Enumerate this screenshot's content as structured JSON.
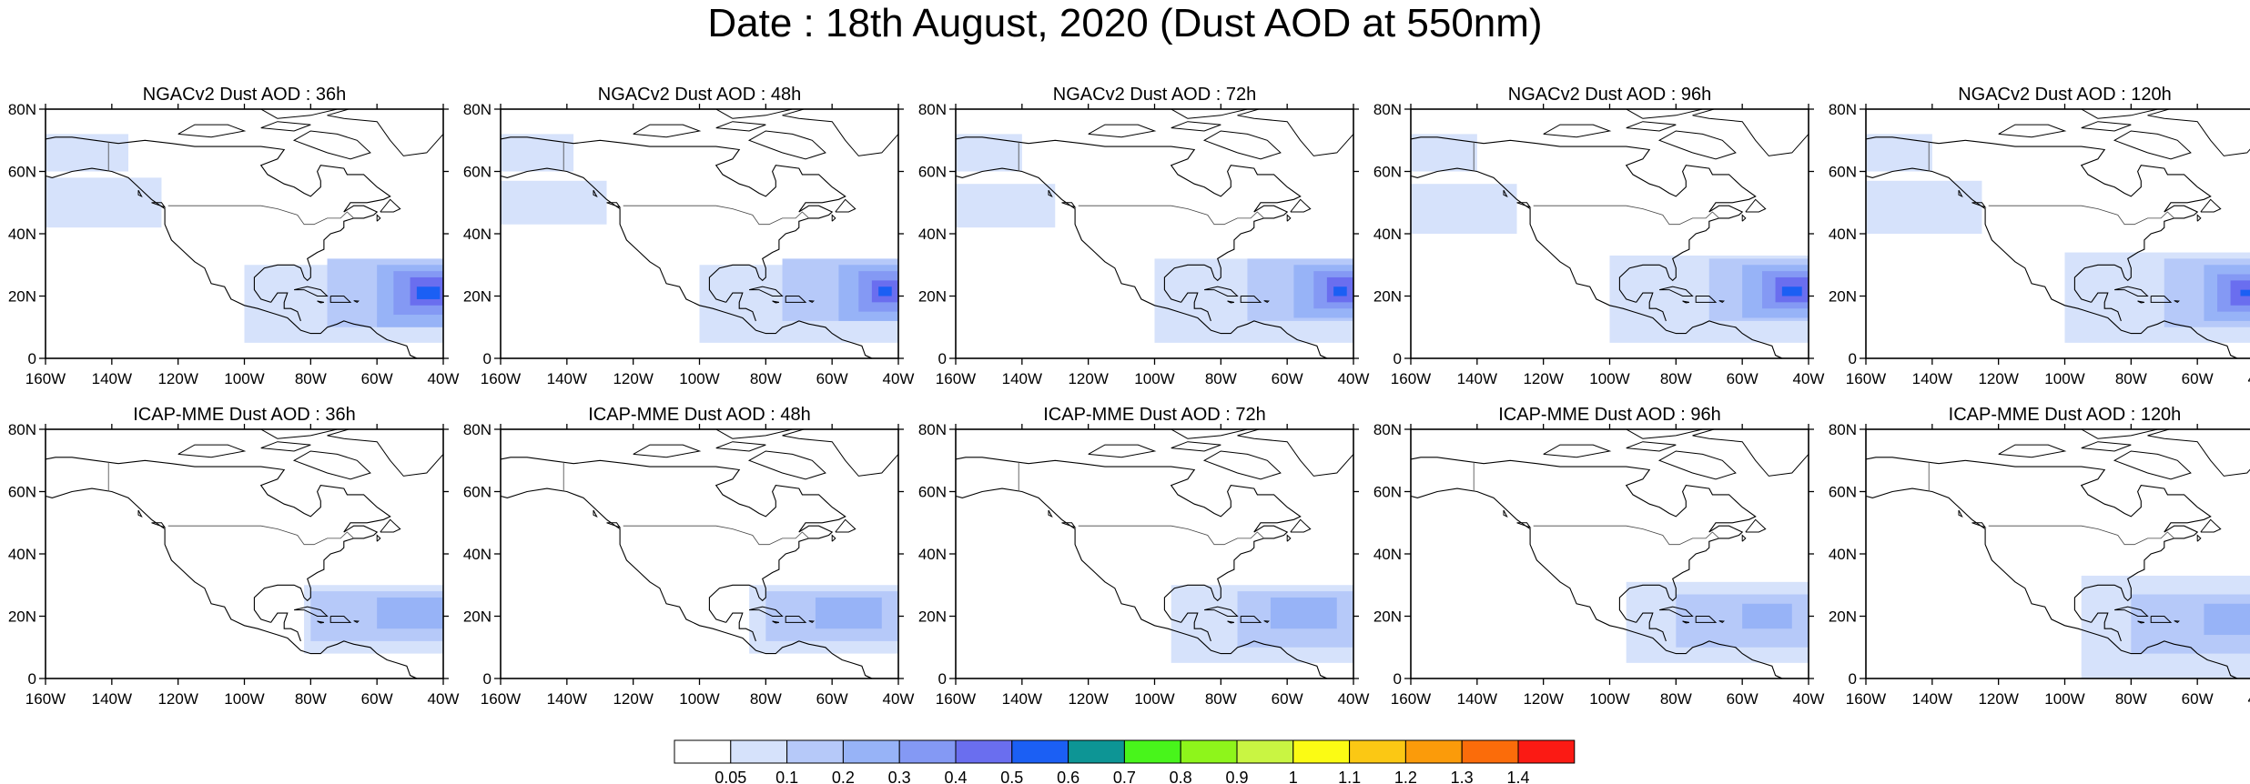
{
  "title": "Date : 18th August, 2020 (Dust AOD at 550nm)",
  "x_tick_labels": [
    "160W",
    "140W",
    "120W",
    "100W",
    "80W",
    "60W",
    "40W"
  ],
  "y_tick_labels": [
    "0",
    "20N",
    "40N",
    "60N",
    "80N"
  ],
  "panels": [
    {
      "title": "NGACv2 Dust AOD : 36h",
      "model": "NGACv2",
      "lead": 36
    },
    {
      "title": "NGACv2 Dust AOD : 48h",
      "model": "NGACv2",
      "lead": 48
    },
    {
      "title": "NGACv2 Dust AOD : 72h",
      "model": "NGACv2",
      "lead": 72
    },
    {
      "title": "NGACv2 Dust AOD : 96h",
      "model": "NGACv2",
      "lead": 96
    },
    {
      "title": "NGACv2 Dust AOD : 120h",
      "model": "NGACv2",
      "lead": 120
    },
    {
      "title": "ICAP-MME Dust AOD : 36h",
      "model": "ICAP-MME",
      "lead": 36
    },
    {
      "title": "ICAP-MME Dust AOD : 48h",
      "model": "ICAP-MME",
      "lead": 48
    },
    {
      "title": "ICAP-MME Dust AOD : 72h",
      "model": "ICAP-MME",
      "lead": 72
    },
    {
      "title": "ICAP-MME Dust AOD : 96h",
      "model": "ICAP-MME",
      "lead": 96
    },
    {
      "title": "ICAP-MME Dust AOD : 120h",
      "model": "ICAP-MME",
      "lead": 120
    }
  ],
  "colorbar": {
    "colors": [
      "#ffffff",
      "#d6e2fb",
      "#b6c9f9",
      "#97b3f7",
      "#8499f4",
      "#6a6eef",
      "#1b5ff4",
      "#0d9595",
      "#48f51b",
      "#8ef51b",
      "#c9f542",
      "#fbfb14",
      "#fbc814",
      "#fb9b0a",
      "#fb6c0a",
      "#fb1a14"
    ],
    "labels": [
      "0.05",
      "0.1",
      "0.2",
      "0.3",
      "0.4",
      "0.5",
      "0.6",
      "0.7",
      "0.8",
      "0.9",
      "1",
      "1.1",
      "1.2",
      "1.3",
      "1.4"
    ]
  }
}
